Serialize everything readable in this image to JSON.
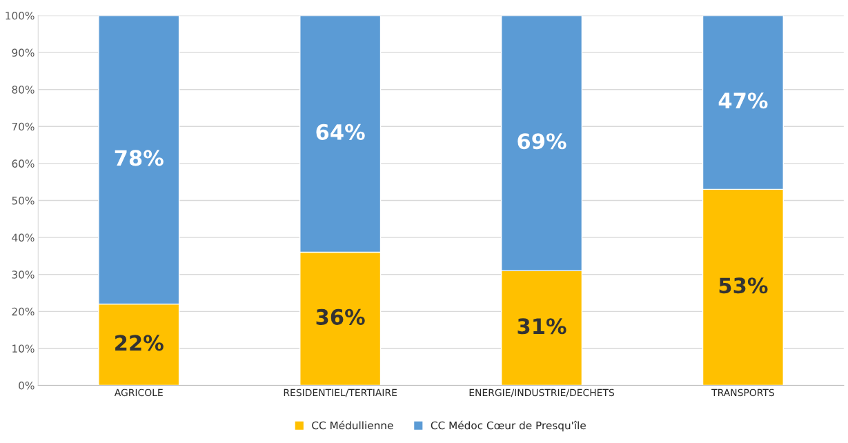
{
  "chart_data": {
    "type": "bar",
    "stacked": true,
    "categories": [
      "AGRICOLE",
      "RESIDENTIEL/TERTIAIRE",
      "ENERGIE/INDUSTRIE/DECHETS",
      "TRANSPORTS"
    ],
    "series": [
      {
        "name": "CC Médullienne",
        "color": "#ffc000",
        "values": [
          22,
          36,
          31,
          53
        ],
        "value_labels": [
          "22%",
          "36%",
          "31%",
          "53%"
        ]
      },
      {
        "name": "CC Médoc Cœur de Presqu'île",
        "color": "#5b9bd5",
        "values": [
          78,
          64,
          69,
          47
        ],
        "value_labels": [
          "78%",
          "64%",
          "69%",
          "47%"
        ]
      }
    ],
    "ylim": [
      0,
      100
    ],
    "yticks": [
      {
        "value": 0,
        "label": "0%"
      },
      {
        "value": 10,
        "label": "10%"
      },
      {
        "value": 20,
        "label": "20%"
      },
      {
        "value": 30,
        "label": "30%"
      },
      {
        "value": 40,
        "label": "40%"
      },
      {
        "value": 50,
        "label": "50%"
      },
      {
        "value": 60,
        "label": "60%"
      },
      {
        "value": 70,
        "label": "70%"
      },
      {
        "value": 80,
        "label": "80%"
      },
      {
        "value": 90,
        "label": "90%"
      },
      {
        "value": 100,
        "label": "100%"
      }
    ],
    "grid": "y",
    "legend": "bottom"
  }
}
